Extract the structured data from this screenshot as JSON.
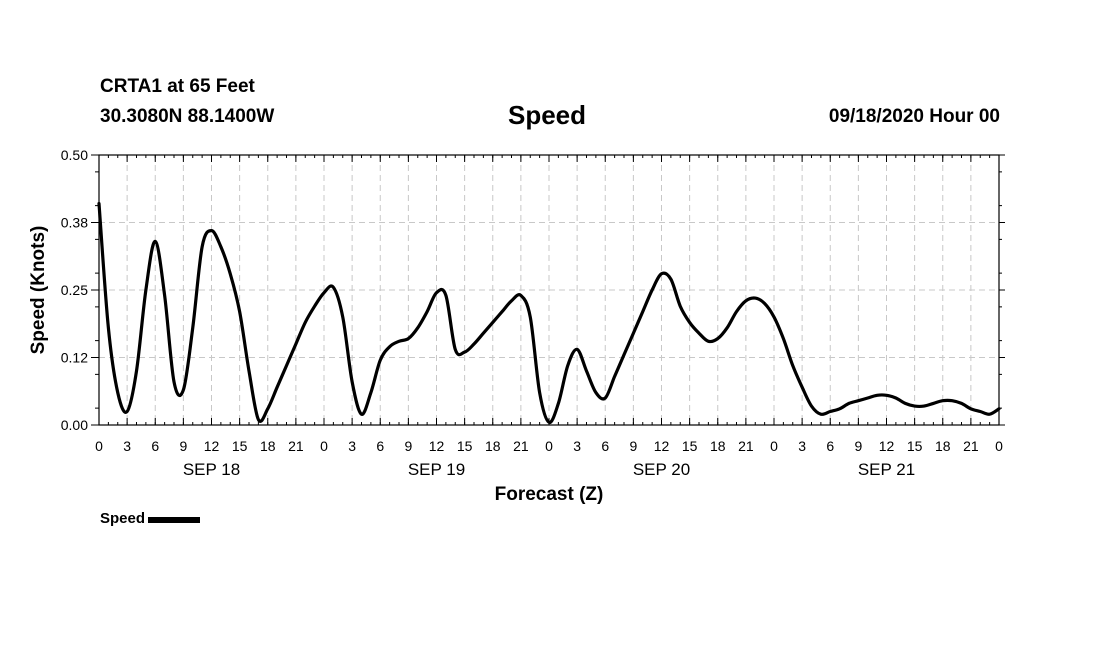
{
  "header": {
    "station": "CRTA1 at 65 Feet",
    "coords": "30.3080N 88.1400W",
    "title": "Speed",
    "datetime": "09/18/2020 Hour 00"
  },
  "legend": {
    "label": "Speed"
  },
  "chart_data": {
    "type": "line",
    "title": "Speed",
    "xlabel": "Forecast (Z)",
    "ylabel": "Speed (Knots)",
    "ylim": [
      0,
      0.5
    ],
    "xlim_hours": [
      0,
      96
    ],
    "y_ticks": [
      "0.00",
      "0.12",
      "0.25",
      "0.38",
      "0.50"
    ],
    "x_tick_labels": [
      "0",
      "3",
      "6",
      "9",
      "12",
      "15",
      "18",
      "21",
      "0",
      "3",
      "6",
      "9",
      "12",
      "15",
      "18",
      "21",
      "0",
      "3",
      "6",
      "9",
      "12",
      "15",
      "18",
      "21",
      "0",
      "3",
      "6",
      "9",
      "12",
      "15",
      "18",
      "21",
      "0"
    ],
    "date_labels": [
      {
        "label": "SEP 18",
        "hour": 12
      },
      {
        "label": "SEP 19",
        "hour": 36
      },
      {
        "label": "SEP 20",
        "hour": 60
      },
      {
        "label": "SEP 21",
        "hour": 84
      }
    ],
    "grid": true,
    "legend_position": "bottom-left",
    "series": [
      {
        "name": "Speed",
        "color": "#000000",
        "x": [
          0,
          1,
          2,
          3,
          4,
          5,
          6,
          7,
          8,
          9,
          10,
          11,
          12,
          13,
          14,
          15,
          16,
          17,
          18,
          19,
          20,
          21,
          22,
          23,
          24,
          25,
          26,
          27,
          28,
          29,
          30,
          31,
          32,
          33,
          34,
          35,
          36,
          37,
          38,
          39,
          40,
          41,
          42,
          43,
          44,
          45,
          46,
          47,
          48,
          49,
          50,
          51,
          52,
          53,
          54,
          55,
          56,
          57,
          58,
          59,
          60,
          61,
          62,
          63,
          64,
          65,
          66,
          67,
          68,
          69,
          70,
          71,
          72,
          73,
          74,
          75,
          76,
          77,
          78,
          79,
          80,
          81,
          82,
          83,
          84,
          85,
          86,
          87,
          88,
          89,
          90,
          91,
          92,
          93,
          94,
          95,
          96
        ],
        "values": [
          0.41,
          0.18,
          0.06,
          0.025,
          0.1,
          0.25,
          0.34,
          0.24,
          0.08,
          0.065,
          0.18,
          0.33,
          0.36,
          0.33,
          0.28,
          0.21,
          0.1,
          0.01,
          0.03,
          0.07,
          0.11,
          0.15,
          0.19,
          0.22,
          0.245,
          0.255,
          0.2,
          0.08,
          0.02,
          0.06,
          0.12,
          0.145,
          0.155,
          0.16,
          0.18,
          0.21,
          0.245,
          0.24,
          0.14,
          0.135,
          0.15,
          0.17,
          0.19,
          0.21,
          0.23,
          0.24,
          0.2,
          0.06,
          0.005,
          0.04,
          0.11,
          0.14,
          0.1,
          0.06,
          0.05,
          0.09,
          0.13,
          0.17,
          0.21,
          0.25,
          0.28,
          0.27,
          0.22,
          0.19,
          0.17,
          0.155,
          0.16,
          0.18,
          0.21,
          0.23,
          0.235,
          0.225,
          0.2,
          0.16,
          0.11,
          0.07,
          0.035,
          0.02,
          0.025,
          0.03,
          0.04,
          0.045,
          0.05,
          0.055,
          0.055,
          0.05,
          0.04,
          0.035,
          0.035,
          0.04,
          0.045,
          0.045,
          0.04,
          0.03,
          0.025,
          0.02,
          0.03
        ]
      }
    ]
  }
}
